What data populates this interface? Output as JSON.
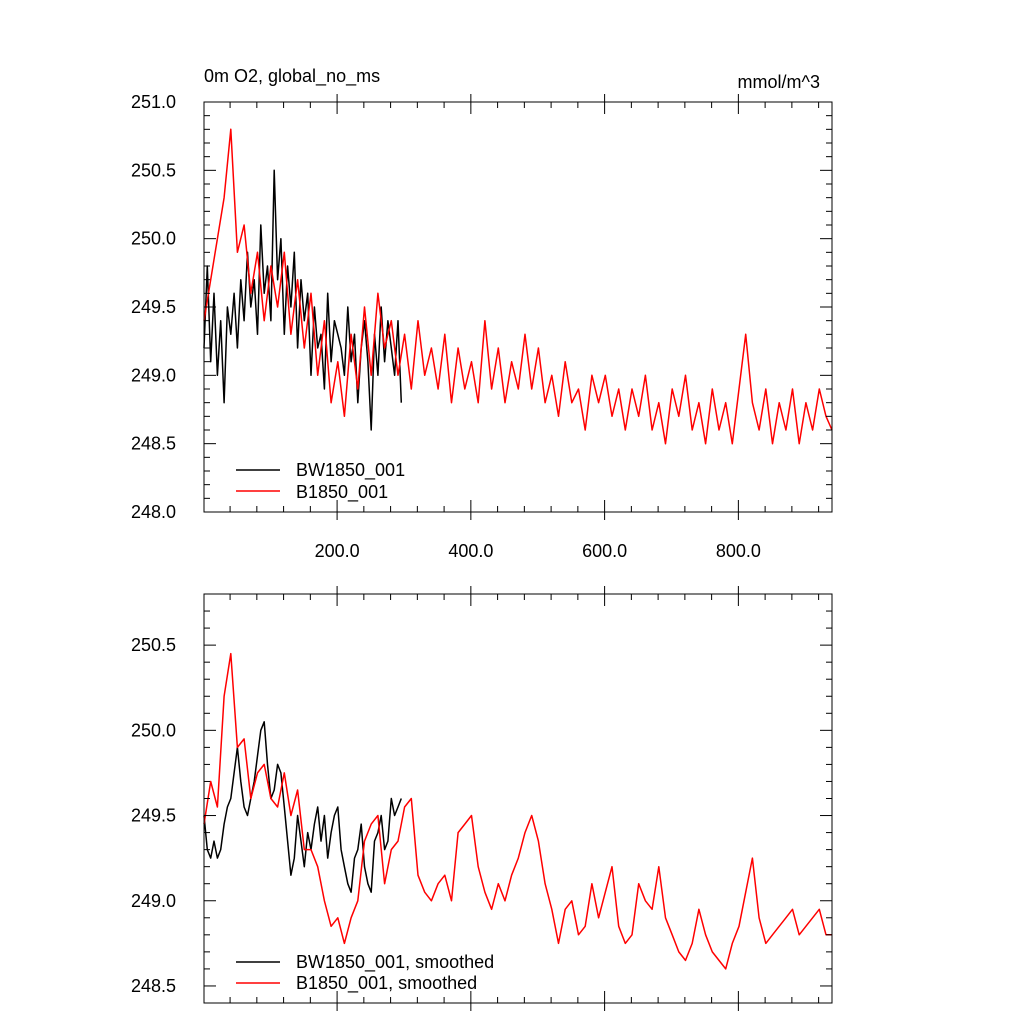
{
  "colors": {
    "series_black": "#000000",
    "series_red": "#ff0000",
    "background": "#ffffff"
  },
  "chart_data": [
    {
      "type": "line",
      "title": "0m O2, global_no_ms",
      "units_label": "mmol/m^3",
      "xlabel": "",
      "ylabel": "",
      "xlim": [
        1,
        940
      ],
      "ylim": [
        248.0,
        251.0
      ],
      "xticks": [
        200.0,
        400.0,
        600.0,
        800.0
      ],
      "xtick_labels": [
        "200.0",
        "400.0",
        "600.0",
        "800.0"
      ],
      "yticks": [
        248.0,
        248.5,
        249.0,
        249.5,
        250.0,
        250.5,
        251.0
      ],
      "ytick_labels": [
        "248.0",
        "248.5",
        "249.0",
        "249.5",
        "250.0",
        "250.5",
        "251.0"
      ],
      "grid": false,
      "legend_position": "bottom-left",
      "series": [
        {
          "name": "BW1850_001",
          "color": "#000000",
          "x": [
            1,
            6,
            11,
            16,
            21,
            26,
            31,
            36,
            41,
            46,
            51,
            56,
            61,
            66,
            71,
            76,
            81,
            86,
            91,
            96,
            101,
            106,
            111,
            116,
            121,
            126,
            131,
            136,
            141,
            146,
            151,
            156,
            161,
            166,
            171,
            176,
            181,
            186,
            191,
            196,
            201,
            206,
            211,
            216,
            221,
            226,
            231,
            236,
            241,
            246,
            251,
            256,
            261,
            266,
            271,
            276,
            281,
            286,
            291,
            296
          ],
          "values": [
            249.2,
            249.8,
            249.1,
            249.6,
            249.0,
            249.4,
            248.8,
            249.5,
            249.3,
            249.6,
            249.2,
            249.7,
            249.4,
            249.9,
            249.5,
            249.7,
            249.3,
            250.1,
            249.6,
            249.8,
            249.4,
            250.5,
            249.7,
            250.0,
            249.3,
            249.8,
            249.5,
            249.9,
            249.2,
            249.7,
            249.4,
            249.6,
            249.0,
            249.5,
            249.2,
            249.3,
            248.9,
            249.6,
            249.1,
            249.4,
            249.3,
            249.2,
            249.0,
            249.5,
            249.1,
            249.3,
            248.8,
            249.2,
            249.4,
            249.1,
            248.6,
            249.3,
            249.0,
            249.5,
            249.1,
            249.4,
            249.2,
            249.0,
            249.4,
            248.8
          ]
        },
        {
          "name": "B1850_001",
          "color": "#ff0000",
          "x": [
            1,
            11,
            21,
            31,
            41,
            51,
            61,
            71,
            81,
            91,
            101,
            111,
            121,
            131,
            141,
            151,
            161,
            171,
            181,
            191,
            201,
            211,
            221,
            231,
            241,
            251,
            261,
            271,
            281,
            291,
            301,
            311,
            321,
            331,
            341,
            351,
            361,
            371,
            381,
            391,
            401,
            411,
            421,
            431,
            441,
            451,
            461,
            471,
            481,
            491,
            501,
            511,
            521,
            531,
            541,
            551,
            561,
            571,
            581,
            591,
            601,
            611,
            621,
            631,
            641,
            651,
            661,
            671,
            681,
            691,
            701,
            711,
            721,
            731,
            741,
            751,
            761,
            771,
            781,
            791,
            801,
            811,
            821,
            831,
            841,
            851,
            861,
            871,
            881,
            891,
            901,
            911,
            921,
            931,
            940
          ],
          "values": [
            249.4,
            249.7,
            250.0,
            250.3,
            250.8,
            249.9,
            250.1,
            249.6,
            249.9,
            249.4,
            249.8,
            249.5,
            249.9,
            249.3,
            249.7,
            249.2,
            249.6,
            249.0,
            249.4,
            248.8,
            249.1,
            248.7,
            249.3,
            248.9,
            249.5,
            249.0,
            249.6,
            249.2,
            249.4,
            249.0,
            249.3,
            248.9,
            249.4,
            249.0,
            249.2,
            248.9,
            249.3,
            248.8,
            249.2,
            248.9,
            249.1,
            248.8,
            249.4,
            248.9,
            249.2,
            248.8,
            249.1,
            248.9,
            249.3,
            248.9,
            249.2,
            248.8,
            249.0,
            248.7,
            249.1,
            248.8,
            248.9,
            248.6,
            249.0,
            248.8,
            249.0,
            248.7,
            248.9,
            248.6,
            248.9,
            248.7,
            249.0,
            248.6,
            248.8,
            248.5,
            248.9,
            248.7,
            249.0,
            248.6,
            248.8,
            248.5,
            248.9,
            248.6,
            248.8,
            248.5,
            248.9,
            249.3,
            248.8,
            248.6,
            248.9,
            248.5,
            248.8,
            248.6,
            248.9,
            248.5,
            248.8,
            248.6,
            248.9,
            248.7,
            248.6
          ]
        }
      ]
    },
    {
      "type": "line",
      "title": "",
      "xlabel": "",
      "ylabel": "",
      "xlim": [
        1,
        940
      ],
      "ylim": [
        248.4,
        250.8
      ],
      "xticks": [
        200.0,
        400.0,
        600.0,
        800.0
      ],
      "xtick_labels": [],
      "yticks": [
        248.5,
        249.0,
        249.5,
        250.0,
        250.5
      ],
      "ytick_labels": [
        "248.5",
        "249.0",
        "249.5",
        "250.0",
        "250.5"
      ],
      "grid": false,
      "legend_position": "bottom-left",
      "series": [
        {
          "name": "BW1850_001, smoothed",
          "color": "#000000",
          "x": [
            1,
            6,
            11,
            16,
            21,
            26,
            31,
            36,
            41,
            46,
            51,
            56,
            61,
            66,
            71,
            76,
            81,
            86,
            91,
            96,
            101,
            106,
            111,
            116,
            121,
            126,
            131,
            136,
            141,
            146,
            151,
            156,
            161,
            166,
            171,
            176,
            181,
            186,
            191,
            196,
            201,
            206,
            211,
            216,
            221,
            226,
            231,
            236,
            241,
            246,
            251,
            256,
            261,
            266,
            271,
            276,
            281,
            286,
            291,
            296
          ],
          "values": [
            249.5,
            249.3,
            249.25,
            249.35,
            249.25,
            249.3,
            249.45,
            249.55,
            249.6,
            249.75,
            249.9,
            249.7,
            249.55,
            249.5,
            249.6,
            249.7,
            249.85,
            250.0,
            250.05,
            249.8,
            249.6,
            249.65,
            249.8,
            249.75,
            249.55,
            249.35,
            249.15,
            249.25,
            249.5,
            249.35,
            249.2,
            249.4,
            249.3,
            249.45,
            249.55,
            249.35,
            249.5,
            249.25,
            249.4,
            249.5,
            249.55,
            249.3,
            249.2,
            249.1,
            249.05,
            249.25,
            249.3,
            249.45,
            249.2,
            249.1,
            249.05,
            249.35,
            249.4,
            249.5,
            249.3,
            249.35,
            249.6,
            249.5,
            249.55,
            249.6
          ]
        },
        {
          "name": "B1850_001, smoothed",
          "color": "#ff0000",
          "x": [
            1,
            11,
            21,
            31,
            41,
            51,
            61,
            71,
            81,
            91,
            101,
            111,
            121,
            131,
            141,
            151,
            161,
            171,
            181,
            191,
            201,
            211,
            221,
            231,
            241,
            251,
            261,
            271,
            281,
            291,
            301,
            311,
            321,
            331,
            341,
            351,
            361,
            371,
            381,
            391,
            401,
            411,
            421,
            431,
            441,
            451,
            461,
            471,
            481,
            491,
            501,
            511,
            521,
            531,
            541,
            551,
            561,
            571,
            581,
            591,
            601,
            611,
            621,
            631,
            641,
            651,
            661,
            671,
            681,
            691,
            701,
            711,
            721,
            731,
            741,
            751,
            761,
            771,
            781,
            791,
            801,
            811,
            821,
            831,
            841,
            851,
            861,
            871,
            881,
            891,
            901,
            911,
            921,
            931,
            940
          ],
          "values": [
            249.45,
            249.7,
            249.55,
            250.2,
            250.45,
            249.9,
            249.95,
            249.6,
            249.75,
            249.8,
            249.6,
            249.55,
            249.75,
            249.5,
            249.65,
            249.3,
            249.3,
            249.2,
            249.0,
            248.85,
            248.9,
            248.75,
            248.9,
            249.0,
            249.35,
            249.45,
            249.5,
            249.1,
            249.3,
            249.35,
            249.55,
            249.6,
            249.15,
            249.05,
            249.0,
            249.1,
            249.15,
            249.0,
            249.4,
            249.45,
            249.5,
            249.2,
            249.05,
            248.95,
            249.1,
            249.0,
            249.15,
            249.25,
            249.4,
            249.5,
            249.35,
            249.1,
            248.95,
            248.75,
            248.95,
            249.0,
            248.8,
            248.85,
            249.1,
            248.9,
            249.05,
            249.2,
            248.85,
            248.75,
            248.8,
            249.1,
            249.0,
            248.95,
            249.2,
            248.9,
            248.8,
            248.7,
            248.65,
            248.75,
            248.95,
            248.8,
            248.7,
            248.65,
            248.6,
            248.75,
            248.85,
            249.05,
            249.25,
            248.9,
            248.75,
            248.8,
            248.85,
            248.9,
            248.95,
            248.8,
            248.85,
            248.9,
            248.95,
            248.8,
            248.8
          ]
        }
      ]
    }
  ]
}
